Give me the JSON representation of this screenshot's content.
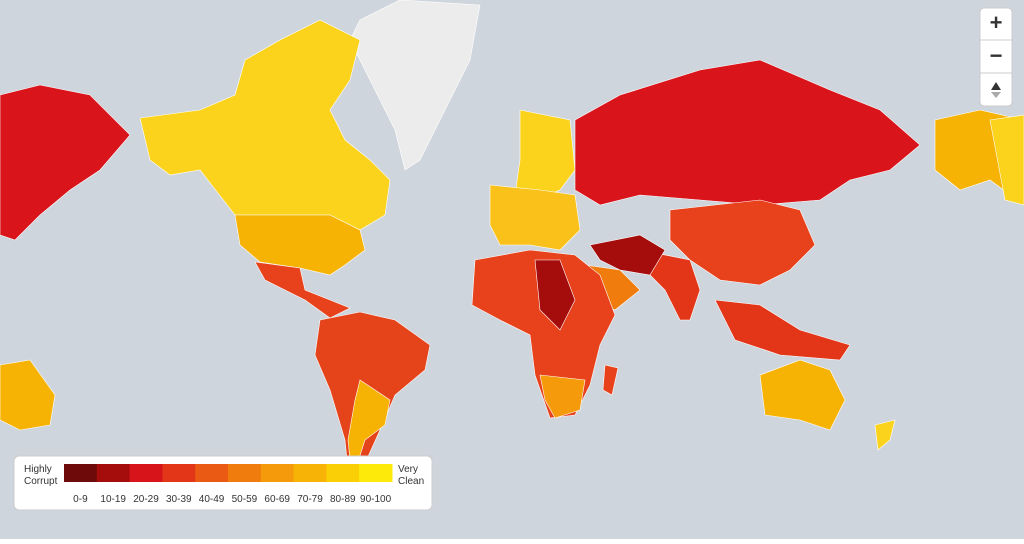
{
  "legend": {
    "low_label": [
      "Highly",
      "Corrupt"
    ],
    "high_label": [
      "Very",
      "Clean"
    ],
    "scale": [
      {
        "label": "0-9",
        "color": "#6e0a0a"
      },
      {
        "label": "10-19",
        "color": "#a50d0d"
      },
      {
        "label": "20-29",
        "color": "#d7141a"
      },
      {
        "label": "30-39",
        "color": "#e33619"
      },
      {
        "label": "40-49",
        "color": "#ea5a14"
      },
      {
        "label": "50-59",
        "color": "#f07c0d"
      },
      {
        "label": "60-69",
        "color": "#f59a0a"
      },
      {
        "label": "70-79",
        "color": "#f8b406"
      },
      {
        "label": "80-89",
        "color": "#fbcf06"
      },
      {
        "label": "90-100",
        "color": "#fde90a"
      }
    ]
  },
  "controls": {
    "zoom_in": "+",
    "zoom_out": "−"
  }
}
